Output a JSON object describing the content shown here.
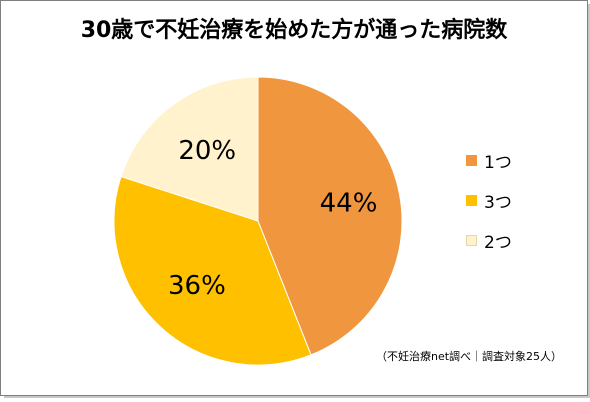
{
  "title": "30歳で不妊治療を始めた方が通った病院数",
  "source_note": "（不妊治療net調べ｜調査対象25人）",
  "chart_data": {
    "type": "pie",
    "title": "30歳で不妊治療を始めた方が通った病院数",
    "slices": [
      {
        "label": "1つ",
        "value": 44,
        "display": "44%",
        "color": "#F0963F"
      },
      {
        "label": "3つ",
        "value": 36,
        "display": "36%",
        "color": "#FFC000"
      },
      {
        "label": "2つ",
        "value": 20,
        "display": "20%",
        "color": "#FFF2CC"
      }
    ],
    "start": "12 o'clock",
    "direction": "clockwise",
    "legend_position": "right"
  },
  "legend": {
    "items": [
      {
        "label": "1つ",
        "color": "#F0963F"
      },
      {
        "label": "3つ",
        "color": "#FFC000"
      },
      {
        "label": "2つ",
        "color": "#FFF2CC"
      }
    ]
  }
}
